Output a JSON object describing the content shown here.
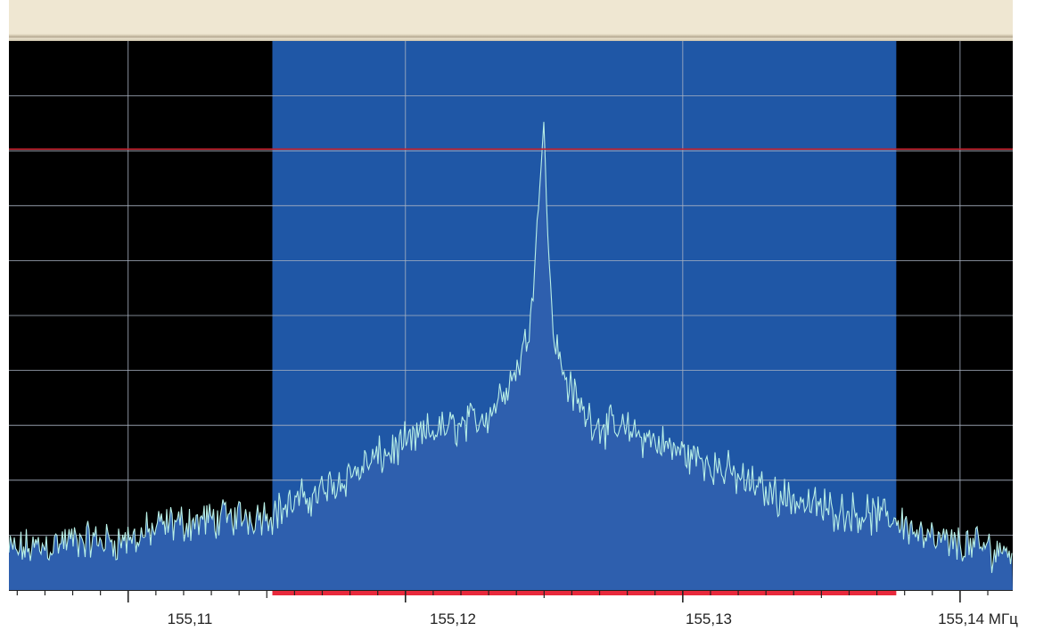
{
  "colors": {
    "background": "#000000",
    "passband": "#1f57a6",
    "fill": "#2e5fae",
    "trace": "#b8efe6",
    "grid": "#a9b2c2",
    "threshold": "#c4202c",
    "band_marker": "#e8293c",
    "titlebar": "#efe7d2"
  },
  "chart_data": {
    "type": "area",
    "x_unit": "МГц",
    "x_tick_labels": [
      "155,11",
      "155,12",
      "155,13",
      "155,14 МГц"
    ],
    "x_ticks": [
      155.11,
      155.12,
      155.13,
      155.14
    ],
    "x_range": [
      155.1057,
      155.1419
    ],
    "passband": [
      155.1152,
      155.1377
    ],
    "center_frequency": 155.125,
    "threshold_level": 0.803,
    "y_range": [
      0,
      1
    ],
    "grid": true,
    "legend": "none",
    "x": [
      155.1057,
      155.108,
      155.11,
      155.1115,
      155.1152,
      155.117,
      155.119,
      155.121,
      155.122,
      155.123,
      155.1235,
      155.124,
      155.1244,
      155.1247,
      155.1249,
      155.125,
      155.1251,
      155.1253,
      155.1256,
      155.126,
      155.1265,
      155.127,
      155.128,
      155.129,
      155.131,
      155.133,
      155.135,
      155.1377,
      155.139,
      155.1419
    ],
    "y": [
      0.07,
      0.09,
      0.09,
      0.12,
      0.14,
      0.18,
      0.24,
      0.29,
      0.3,
      0.32,
      0.36,
      0.4,
      0.46,
      0.62,
      0.78,
      0.86,
      0.68,
      0.48,
      0.41,
      0.36,
      0.32,
      0.3,
      0.29,
      0.27,
      0.23,
      0.18,
      0.15,
      0.13,
      0.09,
      0.07
    ]
  }
}
